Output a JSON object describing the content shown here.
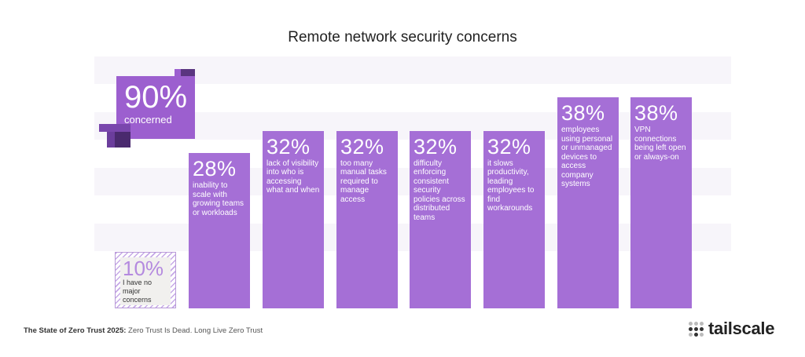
{
  "chart_data": {
    "type": "bar",
    "title": "Remote network security concerns",
    "unit": "%",
    "summary": {
      "value": "90%",
      "label": "concerned"
    },
    "categories": [
      "I have no major concerns",
      "inability to scale with growing teams or workloads",
      "lack of visibility into who is accessing what and when",
      "too many manual tasks required to manage access",
      "difficulty enforcing consistent security policies across distributed teams",
      "it slows productivity, leading employees to find workarounds",
      "employees using personal or unmanaged devices to access company systems",
      "VPN connections being left open or always-on"
    ],
    "values": [
      10,
      28,
      32,
      32,
      32,
      32,
      38,
      38
    ],
    "value_labels": [
      "10%",
      "28%",
      "32%",
      "32%",
      "32%",
      "32%",
      "38%",
      "38%"
    ],
    "colors": {
      "bar": "#a56fd6",
      "summary": "#9c5fcf",
      "none": "#c5a8e6"
    }
  },
  "footer": {
    "source_bold": "The State of Zero Trust 2025:",
    "source_rest": " Zero Trust Is Dead. Long Live Zero Trust"
  },
  "logo": {
    "name": "tailscale"
  }
}
